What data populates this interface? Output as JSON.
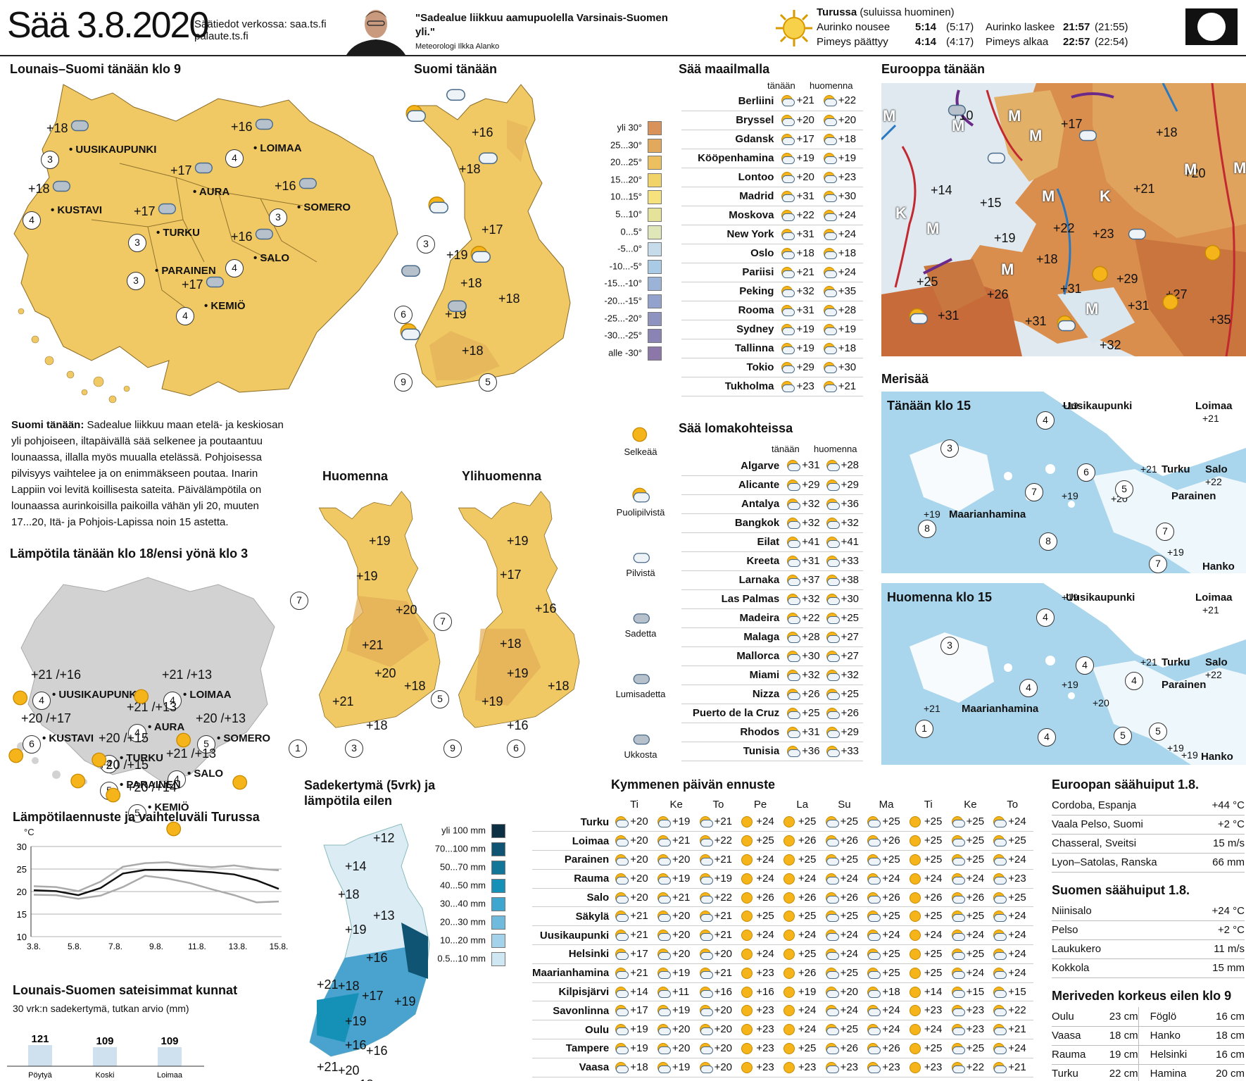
{
  "header": {
    "title": "Sää 3.8.2020",
    "online_label": "Säätiedot  verkossa:",
    "online_url": "saa.ts.fi",
    "online_url2": "palaute.ts.fi",
    "quote": "\"Sadealue liikkuu aamupuolella Varsinais-Suomen yli.\"",
    "meteorologist": "Meteorologi  Ilkka Alanko",
    "sun_title": "Turussa",
    "sun_sub": "(suluissa huominen)",
    "rows": [
      {
        "l": "Aurinko nousee",
        "v": "5:14",
        "p": "(5:17)",
        "l2": "Aurinko laskee",
        "v2": "21:57",
        "p2": "(21:55)"
      },
      {
        "l": "Pimeys päättyy",
        "v": "4:14",
        "p": "(4:17)",
        "l2": "Pimeys alkaa",
        "v2": "22:57",
        "p2": "(22:54)"
      }
    ]
  },
  "sections": {
    "lounais": "Lounais–Suomi tänään klo 9",
    "suomi": "Suomi tänään",
    "maailma": "Sää maailmalla",
    "eurooppa": "Eurooppa tänään",
    "huomenna": "Huomenna",
    "ylihuomenna": "Ylihuomenna",
    "lampotila": "Lämpötila tänään klo 18/ensi yönä klo 3",
    "lampoennuste": "Lämpötilaennuste ja vaihteluväli Turussa",
    "sateisimmat": "Lounais-Suomen sateisimmat kunnat",
    "sateisimmat_sub": "30 vrk:n sadekertymä, tutkan arvio (mm)",
    "sadekertyma": "Sadekertymä (5vrk) ja lämpötila eilen",
    "kymmenen": "Kymmenen päivän ennuste",
    "lomakohteet": "Sää lomakohteissa",
    "merisaa": "Merisää",
    "tanaan15": "Tänään klo 15",
    "huomenna15": "Huomenna klo 15",
    "eur_huiput": "Euroopan säähuiput 1.8.",
    "suomen_huiput": "Suomen säähuiput 1.8.",
    "merivesi": "Meriveden korkeus eilen klo 9"
  },
  "text": {
    "lead": "Suomi tänään:",
    "body": "Sadealue liikkuu maan etelä- ja keskiosan yli pohjoiseen, iltapäivällä sää selkenee ja poutaantuu lounaassa, illalla myös muualla etelässä. Pohjoisessa pilvisyys vaihtelee ja on enimmäkseen poutaa. Inarin Lappiin voi levitä koillisesta sateita. Päivälämpötila on lounaassa aurinkoisilla paikoilla vähän yli 20, muuten 17...20, Itä- ja Pohjois-Lapissa noin 15 astetta."
  },
  "map1": [
    {
      "n": "UUSIKAUPUNKI",
      "t": "+18",
      "w": "3"
    },
    {
      "n": "LOIMAA",
      "t": "+16",
      "w": "4"
    },
    {
      "n": "KUSTAVI",
      "t": "+18",
      "w": "4"
    },
    {
      "n": "AURA",
      "t": "+17",
      "w": ""
    },
    {
      "n": "SOMERO",
      "t": "+16",
      "w": "3"
    },
    {
      "n": "TURKU",
      "t": "+17",
      "w": "3"
    },
    {
      "n": "SALO",
      "t": "+16",
      "w": "4"
    },
    {
      "n": "PARAINEN",
      "t": "",
      "w": "3"
    },
    {
      "n": "KEMIÖ",
      "t": "+17",
      "w": "4"
    }
  ],
  "suomi_temps": [
    "+16",
    "+18",
    "+17",
    "+19",
    "+18",
    "+18",
    "+19",
    "+18"
  ],
  "suomi_winds": [
    "3",
    "6",
    "9",
    "5"
  ],
  "temp_legend": [
    "yli 30°",
    "25...30°",
    "20...25°",
    "15...20°",
    "10...15°",
    "5...10°",
    "0...5°",
    "-5...0°",
    "-10...-5°",
    "-15...-10°",
    "-20...-15°",
    "-25...-20°",
    "-30...-25°",
    "alle -30°"
  ],
  "temp_legend_colors": [
    "#d9925a",
    "#e2a85c",
    "#ecbf5f",
    "#f2d367",
    "#f6e27c",
    "#e5e29a",
    "#dfe7b8",
    "#c7dceb",
    "#aacbe6",
    "#9ab3d6",
    "#93a2cc",
    "#8f93c0",
    "#8a84b4",
    "#8b78a8"
  ],
  "icon_legend": [
    "Selkeää",
    "Puolipilvistä",
    "Pilvistä",
    "Sadetta",
    "Lumisadetta",
    "Ukkosta"
  ],
  "world_head": [
    "tänään",
    "huomenna"
  ],
  "world": [
    [
      "Berliini",
      "+21",
      "+22"
    ],
    [
      "Bryssel",
      "+20",
      "+20"
    ],
    [
      "Gdansk",
      "+17",
      "+18"
    ],
    [
      "Kööpenhamina",
      "+19",
      "+19"
    ],
    [
      "Lontoo",
      "+20",
      "+23"
    ],
    [
      "Madrid",
      "+31",
      "+30"
    ],
    [
      "Moskova",
      "+22",
      "+24"
    ],
    [
      "New York",
      "+31",
      "+24"
    ],
    [
      "Oslo",
      "+18",
      "+18"
    ],
    [
      "Pariisi",
      "+21",
      "+24"
    ],
    [
      "Peking",
      "+32",
      "+35"
    ],
    [
      "Rooma",
      "+31",
      "+28"
    ],
    [
      "Sydney",
      "+19",
      "+19"
    ],
    [
      "Tallinna",
      "+19",
      "+18"
    ],
    [
      "Tokio",
      "+29",
      "+30"
    ],
    [
      "Tukholma",
      "+23",
      "+21"
    ]
  ],
  "loma": [
    [
      "Algarve",
      "+31",
      "+28"
    ],
    [
      "Alicante",
      "+29",
      "+29"
    ],
    [
      "Antalya",
      "+32",
      "+36"
    ],
    [
      "Bangkok",
      "+32",
      "+32"
    ],
    [
      "Eilat",
      "+41",
      "+41"
    ],
    [
      "Kreeta",
      "+31",
      "+33"
    ],
    [
      "Larnaka",
      "+37",
      "+38"
    ],
    [
      "Las Palmas",
      "+32",
      "+30"
    ],
    [
      "Madeira",
      "+22",
      "+25"
    ],
    [
      "Malaga",
      "+28",
      "+27"
    ],
    [
      "Mallorca",
      "+30",
      "+27"
    ],
    [
      "Miami",
      "+32",
      "+32"
    ],
    [
      "Nizza",
      "+26",
      "+25"
    ],
    [
      "Puerto de la Cruz",
      "+25",
      "+26"
    ],
    [
      "Rhodos",
      "+31",
      "+29"
    ],
    [
      "Tunisia",
      "+36",
      "+33"
    ]
  ],
  "europe_labels": [
    {
      "t": "+10"
    },
    {
      "t": "+17"
    },
    {
      "t": "+18"
    },
    {
      "t": "+20"
    },
    {
      "t": "+14"
    },
    {
      "t": "+15"
    },
    {
      "t": "+21"
    },
    {
      "t": "+19"
    },
    {
      "t": "+22"
    },
    {
      "t": "+23"
    },
    {
      "t": "+18"
    },
    {
      "t": "+25"
    },
    {
      "t": "+29"
    },
    {
      "t": "+26"
    },
    {
      "t": "+31"
    },
    {
      "t": "+31"
    },
    {
      "t": "+27"
    },
    {
      "t": "+31"
    },
    {
      "t": "+31"
    },
    {
      "t": "+35"
    },
    {
      "t": "+32"
    }
  ],
  "europe_letters": [
    "M",
    "M",
    "M",
    "M",
    "K",
    "M",
    "M",
    "K",
    "M",
    "M",
    "M",
    "M"
  ],
  "huomenna_temps": [
    "+19",
    "+19",
    "+20",
    "+21",
    "+20",
    "+18",
    "+21",
    "+18"
  ],
  "ylihuomenna_temps": [
    "+19",
    "+17",
    "+16",
    "+18",
    "+19",
    "+18",
    "+19",
    "+16"
  ],
  "huomenna_winds": [
    "7",
    "1",
    "3"
  ],
  "yli_winds": [
    "7",
    "5",
    "9",
    "6"
  ],
  "map2": [
    {
      "n": "UUSIKAUPUNKI",
      "t": "+21 /+16",
      "w": "4"
    },
    {
      "n": "LOIMAA",
      "t": "+21 /+13",
      "w": "4"
    },
    {
      "n": "AURA",
      "t": "+21 /+13",
      "w": "4"
    },
    {
      "n": "KUSTAVI",
      "t": "+20 /+17",
      "w": "6"
    },
    {
      "n": "SOMERO",
      "t": "+20 /+13",
      "w": "5"
    },
    {
      "n": "TURKU",
      "t": "+20 /+15",
      "w": "4"
    },
    {
      "n": "SALO",
      "t": "+21 /+13",
      "w": "4"
    },
    {
      "n": "PARAINEN",
      "t": "+20 /+15",
      "w": "5"
    },
    {
      "n": "KEMIÖ",
      "t": "+20 /+14",
      "w": "5"
    }
  ],
  "line_chart": {
    "unit": "°C",
    "y_ticks": [
      "30",
      "25",
      "20",
      "15",
      "10"
    ],
    "x_ticks": [
      "3.8.",
      "5.8.",
      "7.8.",
      "9.8.",
      "11.8.",
      "13.8.",
      "15.8."
    ],
    "mean": [
      20.3,
      20.1,
      19.2,
      20.8,
      24.0,
      24.8,
      24.8,
      24.6,
      24.3,
      23.8,
      22.5,
      20.6
    ],
    "upper": [
      21.2,
      21.0,
      20.1,
      22.2,
      25.5,
      26.3,
      26.5,
      25.8,
      25.4,
      25.8,
      25.1,
      24.7
    ],
    "lower": [
      19.3,
      19.2,
      18.4,
      19.1,
      21.0,
      23.5,
      22.9,
      21.9,
      20.5,
      19.2,
      17.6,
      17.8
    ],
    "ylim": [
      10,
      30
    ]
  },
  "bars": {
    "values": [
      121,
      109,
      109
    ],
    "labels": [
      "Pöytyä",
      "Koski",
      "Loimaa"
    ]
  },
  "precip_legend": [
    "yli 100 mm",
    "70...100 mm",
    "50...70 mm",
    "40...50 mm",
    "30...40 mm",
    "20...30 mm",
    "10...20 mm",
    "0.5...10 mm"
  ],
  "precip_colors": [
    "#0d2f43",
    "#0f5573",
    "#117697",
    "#1591b7",
    "#3ea6cf",
    "#70bbdd",
    "#a3d2ea",
    "#cfe6f3"
  ],
  "precip_temps": [
    "+12",
    "+14",
    "+18",
    "+13",
    "+19",
    "+16",
    "+21",
    "+18",
    "+17",
    "+19",
    "+19",
    "+16",
    "+16",
    "+21",
    "+20",
    "+18"
  ],
  "ten_days": {
    "days": [
      "Ti",
      "Ke",
      "To",
      "Pe",
      "La",
      "Su",
      "Ma",
      "Ti",
      "Ke",
      "To"
    ],
    "rows": [
      [
        "Turku",
        "+20",
        "+19",
        "+21",
        "+24",
        "+25",
        "+25",
        "+25",
        "+25",
        "+25",
        "+24"
      ],
      [
        "Loimaa",
        "+20",
        "+21",
        "+22",
        "+25",
        "+26",
        "+26",
        "+26",
        "+25",
        "+25",
        "+25"
      ],
      [
        "Parainen",
        "+20",
        "+20",
        "+21",
        "+24",
        "+25",
        "+25",
        "+25",
        "+25",
        "+25",
        "+24"
      ],
      [
        "Rauma",
        "+20",
        "+19",
        "+19",
        "+24",
        "+24",
        "+24",
        "+24",
        "+24",
        "+24",
        "+23"
      ],
      [
        "Salo",
        "+20",
        "+21",
        "+22",
        "+26",
        "+26",
        "+26",
        "+26",
        "+26",
        "+26",
        "+25"
      ],
      [
        "Säkylä",
        "+21",
        "+20",
        "+21",
        "+25",
        "+25",
        "+25",
        "+25",
        "+25",
        "+25",
        "+24"
      ],
      [
        "Uusikaupunki",
        "+21",
        "+20",
        "+21",
        "+24",
        "+24",
        "+24",
        "+24",
        "+24",
        "+24",
        "+24"
      ],
      [
        "Helsinki",
        "+17",
        "+20",
        "+20",
        "+24",
        "+25",
        "+24",
        "+25",
        "+25",
        "+25",
        "+24"
      ],
      [
        "Maarianhamina",
        "+21",
        "+19",
        "+21",
        "+23",
        "+26",
        "+25",
        "+25",
        "+25",
        "+24",
        "+24"
      ],
      [
        "Kilpisjärvi",
        "+14",
        "+11",
        "+16",
        "+16",
        "+19",
        "+20",
        "+18",
        "+14",
        "+15",
        "+15"
      ],
      [
        "Savonlinna",
        "+17",
        "+19",
        "+20",
        "+23",
        "+24",
        "+24",
        "+24",
        "+23",
        "+23",
        "+22"
      ],
      [
        "Oulu",
        "+19",
        "+20",
        "+20",
        "+23",
        "+24",
        "+25",
        "+24",
        "+24",
        "+23",
        "+21"
      ],
      [
        "Tampere",
        "+19",
        "+20",
        "+20",
        "+23",
        "+25",
        "+26",
        "+26",
        "+25",
        "+25",
        "+24"
      ],
      [
        "Vaasa",
        "+18",
        "+19",
        "+20",
        "+23",
        "+23",
        "+23",
        "+23",
        "+23",
        "+22",
        "+21"
      ]
    ]
  },
  "eur_huiput": [
    [
      "Cordoba, Espanja",
      "+44 °C"
    ],
    [
      "Vaala Pelso, Suomi",
      "+2 °C"
    ],
    [
      "Chasseral, Sveitsi",
      "15 m/s"
    ],
    [
      "Lyon–Satolas, Ranska",
      "66 mm"
    ]
  ],
  "suomen_huiput": [
    [
      "Niinisalo",
      "+24 °C"
    ],
    [
      "Pelso",
      "+2 °C"
    ],
    [
      "Laukukero",
      "11 m/s"
    ],
    [
      "Kokkola",
      "15 mm"
    ]
  ],
  "merivesi": [
    [
      "Oulu",
      "23 cm",
      "Föglö",
      "16 cm"
    ],
    [
      "Vaasa",
      "18 cm",
      "Hanko",
      "18 cm"
    ],
    [
      "Rauma",
      "19 cm",
      "Helsinki",
      "16 cm"
    ],
    [
      "Turku",
      "22 cm",
      "Hamina",
      "20 cm"
    ]
  ],
  "sea_today": {
    "places": [
      "Uusikaupunki",
      "Loimaa",
      "Turku",
      "Salo",
      "Parainen",
      "Maarianhamina",
      "Hanko"
    ],
    "temps": [
      "+19",
      "+21",
      "+21",
      "+22",
      "+19",
      "+20",
      "+19",
      "+19"
    ],
    "winds": [
      "4",
      "3",
      "6",
      "5",
      "7",
      "8",
      "8",
      "7",
      "7"
    ]
  },
  "sea_tomorrow": {
    "places": [
      "Uusikaupunki",
      "Loimaa",
      "Turku",
      "Salo",
      "Parainen",
      "Maarianhamina",
      "Hanko"
    ],
    "temps": [
      "+19",
      "+21",
      "+21",
      "+22",
      "+19",
      "+21",
      "+20",
      "+19",
      "+19"
    ],
    "winds": [
      "4",
      "3",
      "4",
      "4",
      "4",
      "1",
      "4",
      "5",
      "5"
    ]
  }
}
